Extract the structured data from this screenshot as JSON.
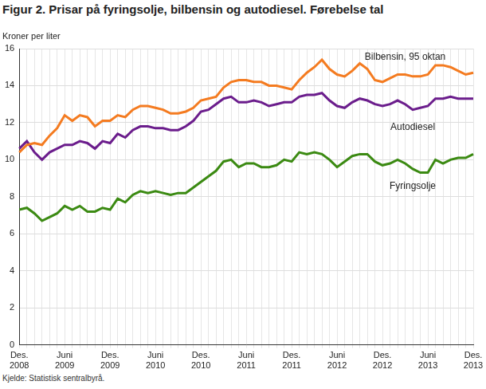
{
  "chart_data": {
    "type": "line",
    "title": "Figur 2. Prisar på fyringsolje, bilbensin og autodiesel. Førebelse tal",
    "y_label": "Kroner per liter",
    "source": "Kjelde: Statistisk sentralbyrå.",
    "categories": [
      "Des. 2008",
      null,
      null,
      null,
      null,
      null,
      "Juni 2009",
      null,
      null,
      null,
      null,
      null,
      "Des. 2009",
      null,
      null,
      null,
      null,
      null,
      "Juni 2010",
      null,
      null,
      null,
      null,
      null,
      "Des. 2010",
      null,
      null,
      null,
      null,
      null,
      "Juni 2011",
      null,
      null,
      null,
      null,
      null,
      "Des. 2011",
      null,
      null,
      null,
      null,
      null,
      "Juni 2012",
      null,
      null,
      null,
      null,
      null,
      "Des. 2012",
      null,
      null,
      null,
      null,
      null,
      "Juni 2013",
      null,
      null,
      null,
      null,
      null,
      "Des. 2013"
    ],
    "series": [
      {
        "name": "Bilbensin, 95 oktan",
        "color": "#f47b20",
        "values": [
          10.4,
          10.8,
          10.9,
          10.8,
          11.3,
          11.7,
          12.4,
          12.1,
          12.4,
          12.3,
          11.8,
          12.1,
          12.1,
          12.4,
          12.3,
          12.7,
          12.9,
          12.9,
          12.8,
          12.7,
          12.5,
          12.5,
          12.6,
          12.8,
          13.2,
          13.3,
          13.4,
          13.9,
          14.2,
          14.3,
          14.3,
          14.2,
          14.2,
          14.0,
          14.0,
          13.9,
          13.8,
          14.3,
          14.7,
          15.0,
          15.4,
          14.9,
          14.6,
          14.5,
          14.8,
          15.2,
          14.9,
          14.3,
          14.2,
          14.4,
          14.6,
          14.6,
          14.5,
          14.5,
          14.6,
          15.1,
          15.1,
          15.0,
          14.8,
          14.6,
          14.7
        ]
      },
      {
        "name": "Autodiesel",
        "color": "#6b1d8c",
        "values": [
          10.6,
          11.0,
          10.4,
          10.0,
          10.4,
          10.6,
          10.8,
          10.8,
          11.0,
          10.9,
          10.6,
          11.0,
          10.9,
          11.4,
          11.2,
          11.6,
          11.8,
          11.8,
          11.7,
          11.7,
          11.6,
          11.6,
          11.8,
          12.1,
          12.6,
          12.7,
          13.0,
          13.3,
          13.4,
          13.1,
          13.1,
          13.2,
          13.1,
          12.9,
          13.0,
          13.1,
          13.1,
          13.4,
          13.5,
          13.5,
          13.6,
          13.2,
          12.9,
          12.8,
          13.1,
          13.3,
          13.2,
          13.0,
          12.9,
          13.0,
          13.2,
          13.0,
          12.7,
          12.8,
          12.9,
          13.3,
          13.3,
          13.4,
          13.3,
          13.3,
          13.3
        ]
      },
      {
        "name": "Fyringsolje",
        "color": "#3b8a12",
        "values": [
          7.3,
          7.4,
          7.1,
          6.7,
          6.9,
          7.1,
          7.5,
          7.3,
          7.5,
          7.2,
          7.2,
          7.4,
          7.3,
          7.9,
          7.7,
          8.1,
          8.3,
          8.2,
          8.3,
          8.2,
          8.1,
          8.2,
          8.2,
          8.5,
          8.8,
          9.1,
          9.4,
          9.9,
          10.0,
          9.6,
          9.8,
          9.8,
          9.6,
          9.6,
          9.7,
          10.0,
          9.9,
          10.4,
          10.3,
          10.4,
          10.3,
          10.0,
          9.6,
          9.9,
          10.2,
          10.3,
          10.3,
          9.9,
          9.7,
          9.8,
          10.0,
          9.8,
          9.5,
          9.3,
          9.3,
          10.0,
          9.8,
          10.0,
          10.1,
          10.1,
          10.3
        ]
      }
    ],
    "ylim": [
      0,
      16
    ],
    "yticks": [
      0,
      2,
      4,
      6,
      8,
      10,
      12,
      14,
      16
    ],
    "grid": true
  }
}
